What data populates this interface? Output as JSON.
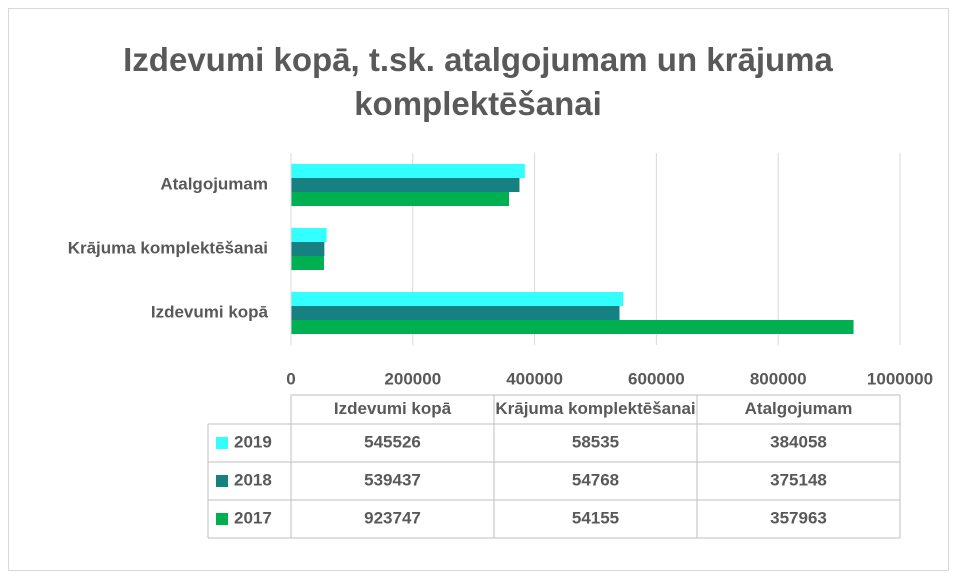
{
  "chart_data": {
    "type": "bar",
    "orientation": "horizontal",
    "title": "Izdevumi kopā, t.sk. atalgojumam un krājuma komplektēšanai",
    "categories": [
      "Izdevumi kopā",
      "Krājuma komplektēšanai",
      "Atalgojumam"
    ],
    "series": [
      {
        "name": "2019",
        "color": "#33ffff",
        "values": [
          545526,
          58535,
          384058
        ]
      },
      {
        "name": "2018",
        "color": "#158181",
        "values": [
          539437,
          54768,
          375148
        ]
      },
      {
        "name": "2017",
        "color": "#00b050",
        "values": [
          923747,
          54155,
          357963
        ]
      }
    ],
    "xlim": [
      0,
      1000000
    ],
    "xticks": [
      0,
      200000,
      400000,
      600000,
      800000,
      1000000
    ],
    "grid": true,
    "data_table": true
  }
}
